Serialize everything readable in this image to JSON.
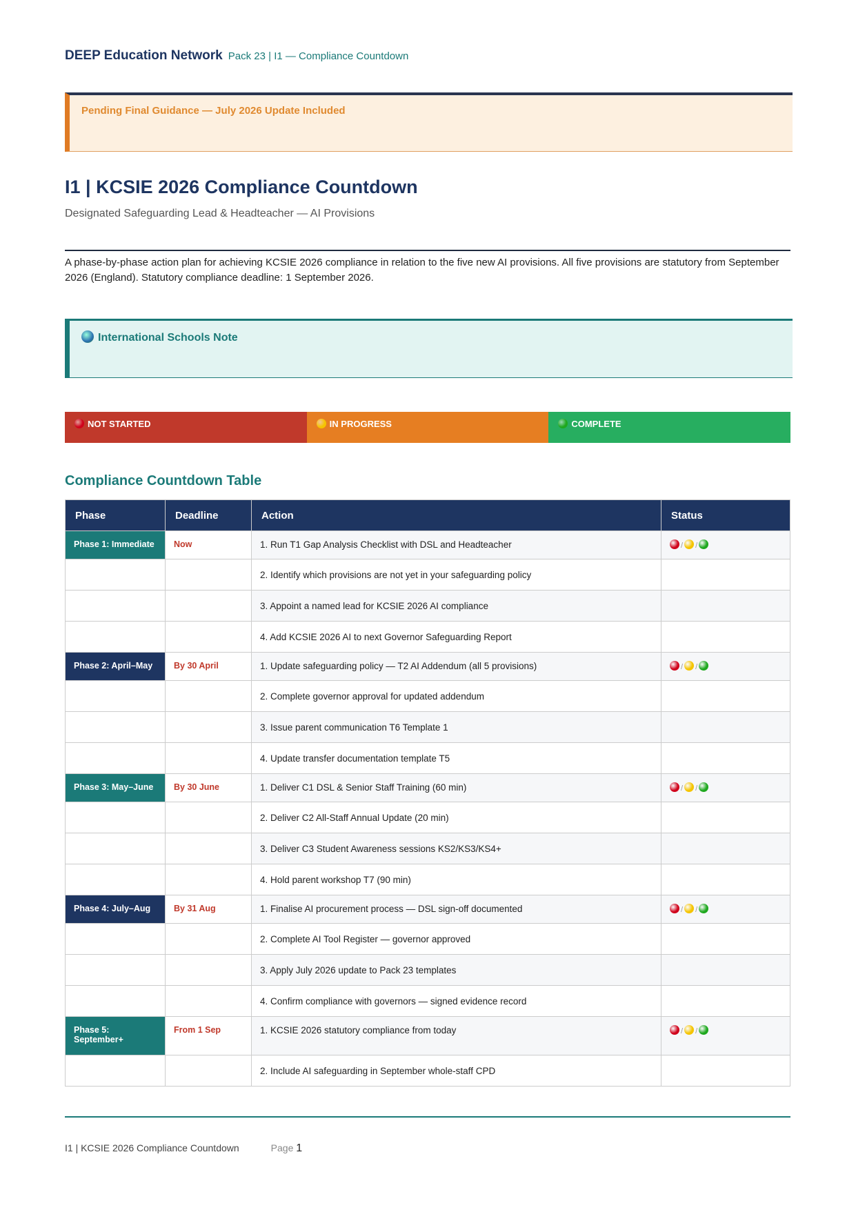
{
  "header": {
    "org": "DEEP Education Network",
    "pack": "Pack 23 | I1 — Compliance Countdown"
  },
  "banner": {
    "text": "Pending Final Guidance — July 2026 Update Included"
  },
  "title": "I1 | KCSIE 2026 Compliance Countdown",
  "subtitle": "Designated Safeguarding Lead & Headteacher — AI Provisions",
  "intro": "A phase-by-phase action plan for achieving KCSIE 2026 compliance in relation to the five new AI provisions. All five provisions are statutory from September 2026 (England). Statutory compliance deadline: 1 September 2026.",
  "intl_note": {
    "icon": "globe-icon",
    "label": "International Schools Note"
  },
  "legend": [
    {
      "label": "NOT STARTED",
      "color": "#c0392b",
      "dot": "#d0021b"
    },
    {
      "label": "IN PROGRESS",
      "color": "#e67e22",
      "dot": "#f5c400"
    },
    {
      "label": "COMPLETE",
      "color": "#27ae60",
      "dot": "#1ea81e"
    }
  ],
  "section_title": "Compliance Countdown Table",
  "table": {
    "headers": [
      "Phase",
      "Deadline",
      "Action",
      "Status"
    ],
    "phases": [
      {
        "phase": "Phase 1: Immediate",
        "deadline": "Now",
        "color": "#1b7a78",
        "actions": [
          "1.  Run T1 Gap Analysis Checklist with DSL and Headteacher",
          "2.  Identify which provisions are not yet in your safeguarding policy",
          "3.  Appoint a named lead for KCSIE 2026 AI compliance",
          "4.  Add KCSIE 2026 AI to next Governor Safeguarding Report"
        ]
      },
      {
        "phase": "Phase 2: April–May",
        "deadline": "By 30 April",
        "color": "#1e3561",
        "actions": [
          "1.  Update safeguarding policy — T2 AI Addendum (all 5 provisions)",
          "2.  Complete governor approval for updated addendum",
          "3.  Issue parent communication T6 Template 1",
          "4.  Update transfer documentation template T5"
        ]
      },
      {
        "phase": "Phase 3: May–June",
        "deadline": "By 30 June",
        "color": "#1b7a78",
        "actions": [
          "1.  Deliver C1 DSL & Senior Staff Training (60 min)",
          "2.  Deliver C2 All-Staff Annual Update (20 min)",
          "3.  Deliver C3 Student Awareness sessions KS2/KS3/KS4+",
          "4.  Hold parent workshop T7 (90 min)"
        ]
      },
      {
        "phase": "Phase 4: July–Aug",
        "deadline": "By 31 Aug",
        "color": "#1e3561",
        "actions": [
          "1.  Finalise AI procurement process — DSL sign-off documented",
          "2.  Complete AI Tool Register — governor approved",
          "3.  Apply July 2026 update to Pack 23 templates",
          "4.  Confirm compliance with governors — signed evidence record"
        ]
      },
      {
        "phase": "Phase 5: September+",
        "deadline": "From 1 Sep",
        "color": "#1b7a78",
        "actions": [
          "1.  KCSIE 2026 statutory compliance from today",
          "2.  Include AI safeguarding in September whole-staff CPD"
        ]
      }
    ]
  },
  "footer": {
    "title": "I1 | KCSIE 2026 Compliance Countdown",
    "page_label": "Page",
    "page": "1"
  }
}
